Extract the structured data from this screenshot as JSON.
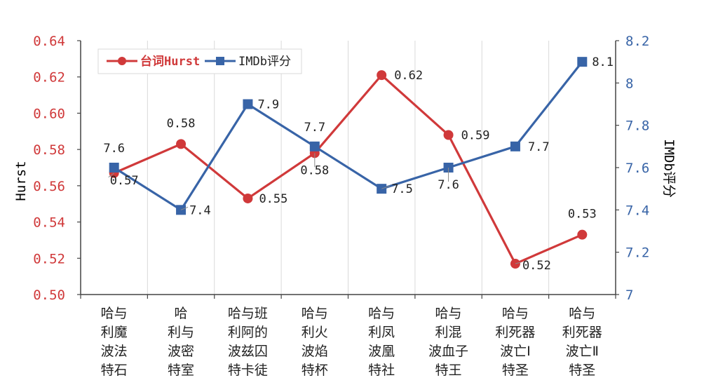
{
  "chart_data": {
    "type": "line",
    "categories": [
      [
        "哈与",
        "利魔",
        "波法",
        "特石"
      ],
      [
        "哈",
        "利与",
        "波密",
        "特室"
      ],
      [
        "哈与班",
        "利阿的",
        "波兹囚",
        "特卡徒"
      ],
      [
        "哈与",
        "利火",
        "波焰",
        "特杯"
      ],
      [
        "哈与",
        "利凤",
        "波凰",
        "特社"
      ],
      [
        "哈与",
        "利混",
        "波血子",
        "特王"
      ],
      [
        "哈与",
        "利死器",
        "波亡Ⅰ",
        "特圣"
      ],
      [
        "哈与",
        "利死器",
        "波亡Ⅱ",
        "特圣"
      ]
    ],
    "series": [
      {
        "name": "台词Hurst",
        "axis": "left",
        "color": "#d0393a",
        "marker": "circle",
        "values": [
          0.567,
          0.583,
          0.553,
          0.578,
          0.621,
          0.588,
          0.517,
          0.533
        ],
        "labels": [
          "0.57",
          "0.58",
          "0.55",
          "0.58",
          "0.62",
          "0.59",
          "0.52",
          "0.53"
        ]
      },
      {
        "name": "IMDb评分",
        "axis": "right",
        "color": "#3864a7",
        "marker": "square",
        "values": [
          7.6,
          7.4,
          7.9,
          7.7,
          7.5,
          7.6,
          7.7,
          8.1
        ],
        "labels": [
          "7.6",
          "7.4",
          "7.9",
          "7.7",
          "7.5",
          "7.6",
          "7.7",
          "8.1"
        ]
      }
    ],
    "y_left": {
      "label": "Hurst",
      "min": 0.5,
      "max": 0.64,
      "ticks": [
        "0.50",
        "0.52",
        "0.54",
        "0.56",
        "0.58",
        "0.60",
        "0.62",
        "0.64"
      ],
      "color": "#d0393a"
    },
    "y_right": {
      "label": "IMDb评分",
      "min": 7.0,
      "max": 8.2,
      "ticks": [
        "7",
        "7.2",
        "7.4",
        "7.6",
        "7.8",
        "8",
        "8.2"
      ],
      "color": "#3864a7"
    },
    "grid": "vertical",
    "legend": "top-left"
  }
}
